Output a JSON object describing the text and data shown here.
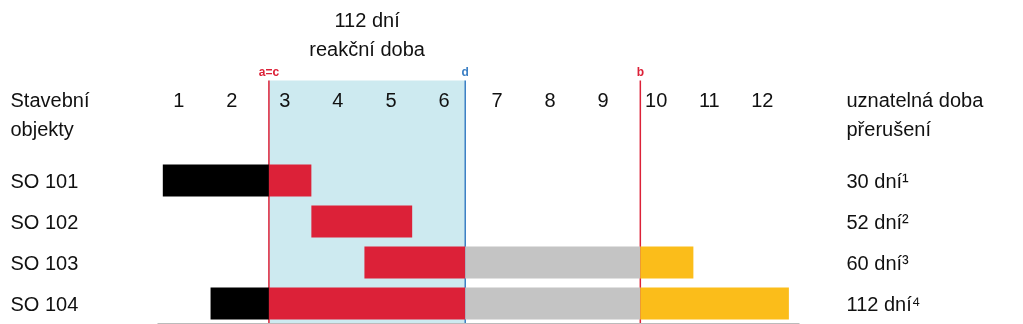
{
  "chart_data": {
    "type": "bar",
    "orientation": "horizontal",
    "ylabel": "Stavební\nobjekty",
    "y2label": "uznatelná doba\npřerušení",
    "categories": [
      "SO 101",
      "SO 102",
      "SO 103",
      "SO 104"
    ],
    "y2_categories": [
      "30 dní¹",
      "52 dní²",
      "60 dní³",
      "112 dní⁴"
    ],
    "series": [
      {
        "color": "#000000",
        "base": [
          0.7,
          null,
          null,
          1.6
        ],
        "values": [
          2.0,
          null,
          null,
          1.1
        ]
      },
      {
        "color": "#dc2138",
        "base": [
          2.7,
          3.5,
          4.5,
          2.7
        ],
        "values": [
          0.8,
          1.9,
          1.9,
          3.7
        ]
      },
      {
        "color": "#c4c4c4",
        "base": [
          null,
          null,
          6.4,
          6.4
        ],
        "values": [
          null,
          null,
          3.3,
          3.3
        ]
      },
      {
        "color": "#fbbd1a",
        "base": [
          null,
          null,
          9.7,
          9.7
        ],
        "values": [
          null,
          null,
          1.0,
          2.8
        ]
      }
    ],
    "xlim": [
      0.6,
      12.7
    ],
    "xticks": [
      1,
      2,
      3,
      4,
      5,
      6,
      7,
      8,
      9,
      10,
      11,
      12
    ],
    "bands": [
      {
        "axis": "x",
        "from": 2.7,
        "to": 6.4,
        "label": "112 dní\nreakční doba",
        "color": "#cdeaf0"
      }
    ],
    "ref_lines": [
      {
        "axis": "x",
        "value": 2.7,
        "label": "a=c",
        "color": "#dc2138"
      },
      {
        "axis": "x",
        "value": 6.4,
        "label": "d",
        "color": "#3b7fc4"
      },
      {
        "axis": "x",
        "value": 9.7,
        "label": "b",
        "color": "#dc2138"
      }
    ]
  }
}
